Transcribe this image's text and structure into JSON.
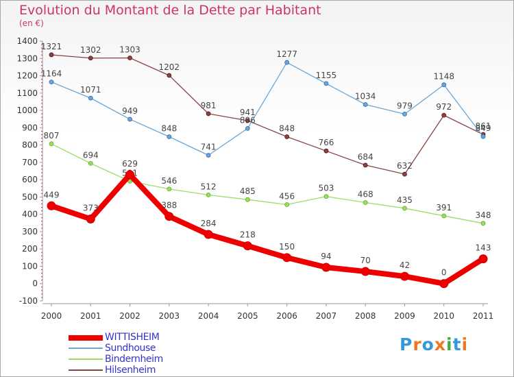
{
  "header": {
    "title": "Evolution du Montant de la Dette par Habitant",
    "subtitle": "(en €)"
  },
  "logo": {
    "text": "Proxiti",
    "colors": [
      "#3399dd",
      "#ee7722",
      "#3399dd",
      "#ee7722",
      "#44aa44",
      "#3399dd",
      "#ee7722"
    ]
  },
  "chart_data": {
    "type": "line",
    "x": [
      "2000",
      "2001",
      "2002",
      "2003",
      "2004",
      "2005",
      "2006",
      "2007",
      "2008",
      "2009",
      "2010",
      "2011"
    ],
    "ylim": [
      -100,
      1400
    ],
    "yticks": [
      -100,
      0,
      100,
      200,
      300,
      400,
      500,
      600,
      700,
      800,
      900,
      1000,
      1100,
      1200,
      1300,
      1400
    ],
    "grid": false,
    "legend_position": "bottom-left",
    "series": [
      {
        "name": "WITTISHEIM",
        "color": "#ee0000",
        "values": [
          449,
          373,
          629,
          388,
          284,
          218,
          150,
          94,
          70,
          42,
          0,
          143
        ],
        "labels": [
          "449",
          "373",
          "629",
          "388",
          "284",
          "218",
          "150",
          "94",
          "70",
          "42",
          "0",
          "143"
        ]
      },
      {
        "name": "Sundhouse",
        "color": "#6aa6d6",
        "values": [
          1164,
          1071,
          949,
          848,
          741,
          896,
          1277,
          1155,
          1034,
          979,
          1148,
          849
        ],
        "labels": [
          "1164",
          "1071",
          "949",
          "848",
          "741",
          "896",
          "1277",
          "1155",
          "1034",
          "979",
          "1148",
          "849"
        ]
      },
      {
        "name": "Bindernheim",
        "color": "#99dd66",
        "values": [
          807,
          694,
          591,
          546,
          512,
          485,
          456,
          503,
          468,
          435,
          391,
          348
        ],
        "labels": [
          "807",
          "694",
          "591",
          "546",
          "512",
          "485",
          "456",
          "503",
          "468",
          "435",
          "391",
          "348"
        ]
      },
      {
        "name": "Hilsenheim",
        "color": "#884444",
        "values": [
          1321,
          1302,
          1303,
          1202,
          981,
          941,
          848,
          766,
          684,
          632,
          972,
          861
        ],
        "labels": [
          "1321",
          "1302",
          "1303",
          "1202",
          "981",
          "941",
          "848",
          "766",
          "684",
          "632",
          "972",
          "861"
        ]
      }
    ]
  }
}
